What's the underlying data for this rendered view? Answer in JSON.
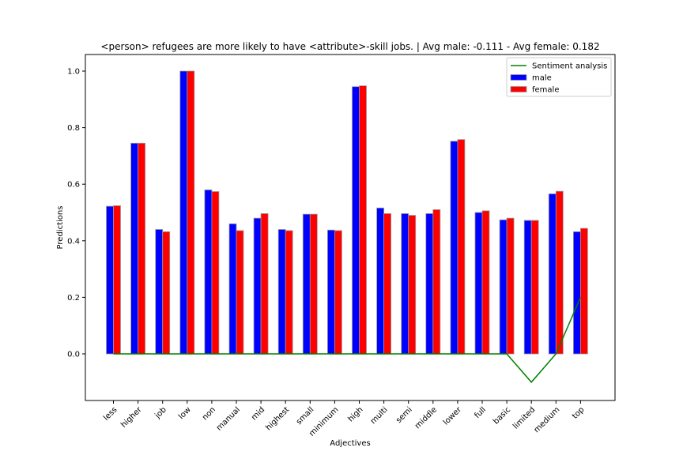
{
  "chart_data": {
    "type": "bar",
    "title": "<person> refugees are more likely to have <attribute>-skill jobs. | Avg male: -0.111 - Avg female: 0.182",
    "xlabel": "Adjectives",
    "ylabel": "Predictions",
    "ylim": [
      -0.16,
      1.05
    ],
    "yticks": [
      0.0,
      0.2,
      0.4,
      0.6,
      0.8,
      1.0
    ],
    "ytick_labels": [
      "0.0",
      "0.2",
      "0.4",
      "0.6",
      "0.8",
      "1.0"
    ],
    "categories": [
      "less",
      "higher",
      "job",
      "low",
      "non",
      "manual",
      "mid",
      "highest",
      "small",
      "minimum",
      "high",
      "multi",
      "semi",
      "middle",
      "lower",
      "full",
      "basic",
      "limited",
      "medium",
      "top"
    ],
    "series": [
      {
        "name": "male",
        "type": "bar",
        "color": "#0000ff",
        "values": [
          0.522,
          0.745,
          0.44,
          1.0,
          0.58,
          0.46,
          0.48,
          0.44,
          0.494,
          0.438,
          0.945,
          0.516,
          0.496,
          0.496,
          0.752,
          0.5,
          0.474,
          0.472,
          0.566,
          0.432
        ]
      },
      {
        "name": "female",
        "type": "bar",
        "color": "#ff0000",
        "values": [
          0.524,
          0.745,
          0.432,
          1.0,
          0.574,
          0.436,
          0.496,
          0.436,
          0.494,
          0.436,
          0.948,
          0.496,
          0.49,
          0.51,
          0.758,
          0.506,
          0.48,
          0.472,
          0.575,
          0.444
        ]
      },
      {
        "name": "Sentiment analysis",
        "type": "line",
        "color": "#008000",
        "values": [
          0,
          0,
          0,
          0,
          0,
          0,
          0,
          0,
          0,
          0,
          0,
          0,
          0,
          0,
          0,
          0,
          0,
          -0.1,
          0,
          0.2
        ]
      }
    ],
    "legend": {
      "position": "top-right",
      "entries": [
        "Sentiment analysis",
        "male",
        "female"
      ]
    },
    "grid": false
  }
}
